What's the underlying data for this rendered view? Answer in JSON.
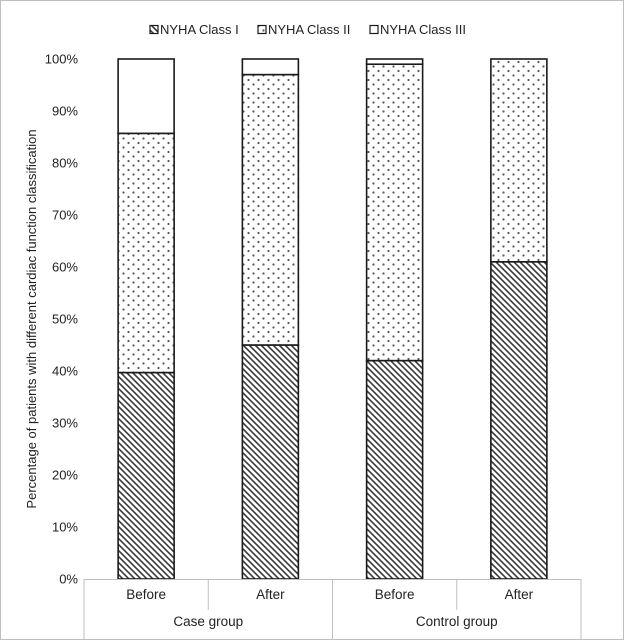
{
  "chart_data": {
    "type": "bar",
    "stacked": "percent",
    "categories": [
      "Before",
      "After",
      "Before",
      "After"
    ],
    "groups": [
      {
        "label": "Case group",
        "categories": [
          "Before",
          "After"
        ]
      },
      {
        "label": "Control group",
        "categories": [
          "Before",
          "After"
        ]
      }
    ],
    "series": [
      {
        "name": "NYHA Class I",
        "values": [
          39.7,
          45.0,
          42.0,
          61.0
        ],
        "pattern": "diagonal-hatch"
      },
      {
        "name": "NYHA Class II",
        "values": [
          46.0,
          52.0,
          57.0,
          39.0
        ],
        "pattern": "dots"
      },
      {
        "name": "NYHA Class III",
        "values": [
          14.3,
          3.0,
          1.0,
          0.0
        ],
        "pattern": "none"
      }
    ],
    "ylabel": "Percentage of patients with different cardiac function classification",
    "xlabel": "",
    "ylim": [
      0,
      100
    ],
    "yticks": [
      "0%",
      "10%",
      "20%",
      "30%",
      "40%",
      "50%",
      "60%",
      "70%",
      "80%",
      "90%",
      "100%"
    ],
    "legend_position": "top",
    "grid": false
  },
  "colors": {
    "stroke": "#1a1a1a",
    "hatch": "#3a3a3a",
    "dot": "#555555",
    "fill": "#ffffff",
    "axis": "#bfbfbf"
  }
}
